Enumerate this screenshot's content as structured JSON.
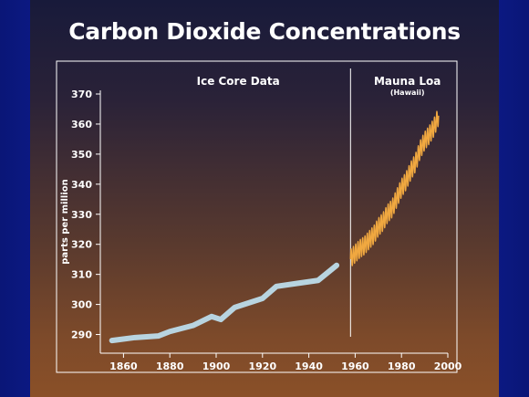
{
  "slide_title": "Carbon Dioxide Concentrations",
  "colors": {
    "ice_core": "#b8d4e0",
    "mauna_loa": "#f0a840",
    "axis": "#ffffff"
  },
  "chart_data": {
    "type": "line",
    "title": "Carbon Dioxide Concentrations",
    "xlabel": "",
    "ylabel": "parts per million",
    "xlim": [
      1850,
      2000
    ],
    "ylim": [
      285,
      370
    ],
    "x_ticks": [
      1860,
      1880,
      1900,
      1920,
      1940,
      1960,
      1980,
      2000
    ],
    "y_ticks": [
      290,
      300,
      310,
      320,
      330,
      340,
      350,
      360,
      370
    ],
    "divider_x": 1958,
    "section_labels": {
      "left": "Ice Core Data",
      "right": "Mauna Loa",
      "right_sub": "(Hawaii)"
    },
    "grid": false,
    "series": [
      {
        "name": "Ice Core Data",
        "x": [
          1855,
          1865,
          1875,
          1880,
          1890,
          1898,
          1902,
          1908,
          1920,
          1926,
          1935,
          1944,
          1952
        ],
        "y": [
          288,
          289,
          289.5,
          291,
          293,
          296,
          295,
          299,
          302,
          306,
          307,
          308,
          313
        ]
      },
      {
        "name": "Mauna Loa",
        "x": [
          1958,
          1960,
          1962,
          1964,
          1966,
          1968,
          1970,
          1972,
          1974,
          1976,
          1978,
          1980,
          1982,
          1984,
          1986,
          1988,
          1990,
          1992,
          1994,
          1996
        ],
        "y": [
          315.3,
          316.9,
          318.5,
          319.6,
          321.4,
          323.1,
          325.7,
          327.5,
          330.2,
          332.0,
          335.4,
          338.7,
          341.1,
          344.4,
          347.1,
          351.4,
          354.4,
          356.4,
          358.9,
          362.6
        ],
        "seasonal_amplitude": 3
      }
    ]
  }
}
